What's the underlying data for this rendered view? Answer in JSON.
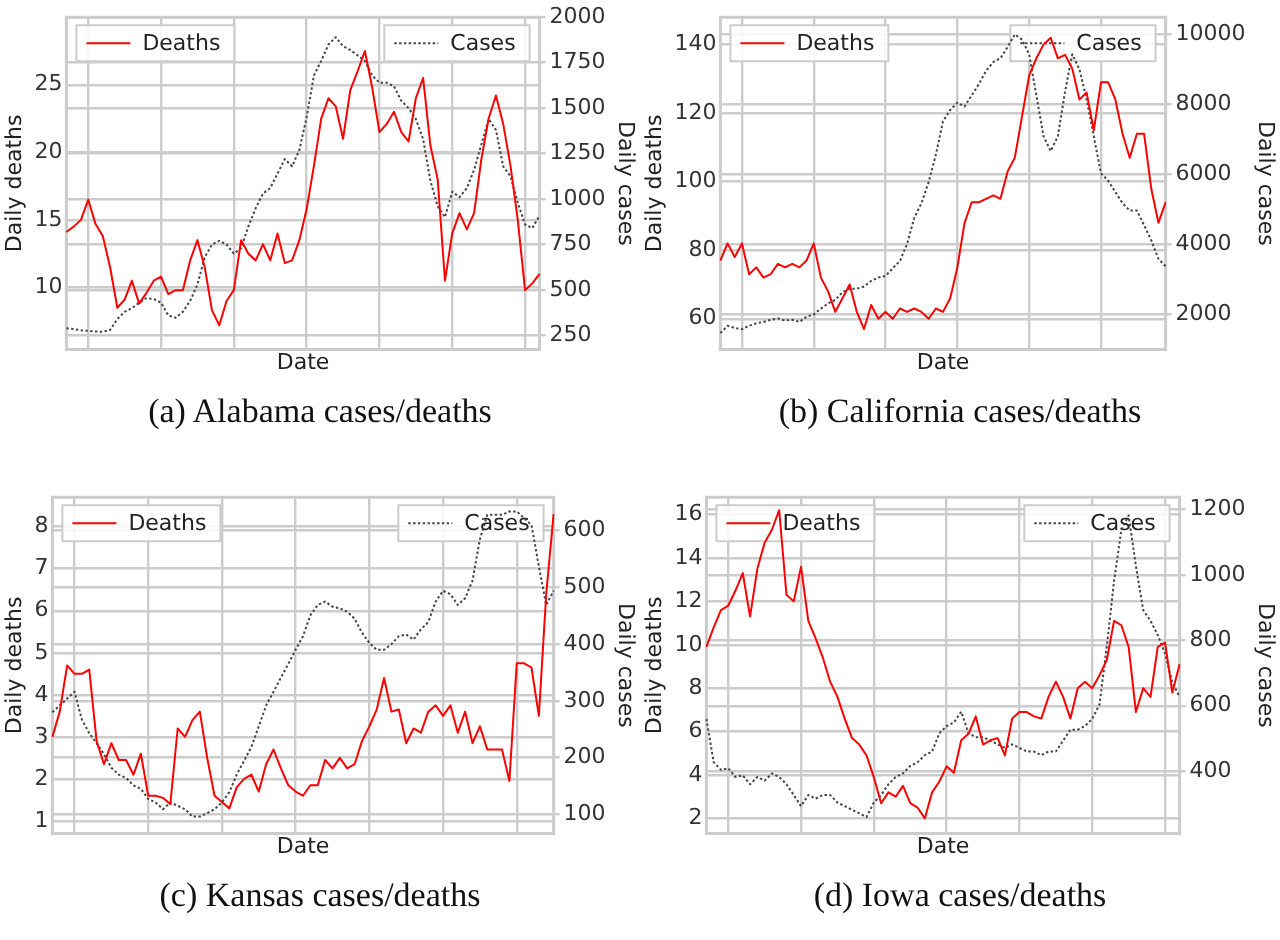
{
  "chart_data": [
    {
      "type": "line",
      "title": "(a)  Alabama cases/deaths",
      "xlabel": "Date",
      "ylabel": "Daily deaths",
      "y2label": "Daily cases",
      "grid": true,
      "legend": "top",
      "categories": [
        null,
        null,
        null,
        null,
        null,
        null,
        null,
        null,
        null,
        null,
        null,
        null,
        null,
        null,
        null,
        null,
        null,
        null,
        null,
        null,
        null,
        null,
        null,
        null,
        null,
        null,
        null,
        null,
        null,
        null,
        null,
        null,
        null,
        null,
        null,
        null,
        null,
        null,
        null,
        null,
        null,
        null,
        null,
        null,
        null,
        null,
        null,
        null,
        null,
        null,
        null,
        null,
        null,
        null,
        null,
        null,
        null,
        null,
        null,
        null,
        null,
        null,
        null,
        null,
        null,
        null
      ],
      "ylim": [
        5.4,
        30
      ],
      "yticks": [
        10,
        15,
        20,
        25
      ],
      "y2lim": [
        172,
        2000
      ],
      "y2ticks": [
        250,
        500,
        750,
        1000,
        1250,
        1500,
        1750,
        2000
      ],
      "series": [
        {
          "name": "Deaths",
          "color": "#ff0000",
          "line_style": "solid",
          "values": [
            14.1,
            14.5,
            15.0,
            16.5,
            14.7,
            13.8,
            11.5,
            8.5,
            9.1,
            10.5,
            8.8,
            9.6,
            10.5,
            10.8,
            9.5,
            9.8,
            9.8,
            12.0,
            13.5,
            11.5,
            8.3,
            7.2,
            9.0,
            9.8,
            13.5,
            12.5,
            12.0,
            13.2,
            12.0,
            14.0,
            11.8,
            12.0,
            13.5,
            15.8,
            19.0,
            22.5,
            24.0,
            23.4,
            21.0,
            24.6,
            26.0,
            27.5,
            24.8,
            21.5,
            22.1,
            23.0,
            21.5,
            20.8,
            24.0,
            25.5,
            20.5,
            18.0,
            10.5,
            14.0,
            15.5,
            14.3,
            15.5,
            19.5,
            22.5,
            24.2,
            22.1,
            19.0,
            15.0,
            9.8,
            10.3,
            11.0
          ]
        },
        {
          "name": "Cases",
          "color": "#444444",
          "line_style": "dotted",
          "axis": "y2",
          "values": [
            289,
            285,
            278,
            275,
            272,
            270,
            280,
            340,
            380,
            400,
            430,
            455,
            450,
            430,
            360,
            347,
            380,
            440,
            530,
            680,
            750,
            770,
            750,
            700,
            730,
            850,
            950,
            1030,
            1060,
            1140,
            1220,
            1180,
            1270,
            1450,
            1680,
            1760,
            1850,
            1890,
            1840,
            1820,
            1790,
            1760,
            1680,
            1640,
            1640,
            1620,
            1540,
            1500,
            1440,
            1330,
            1100,
            960,
            900,
            1040,
            1010,
            1060,
            1160,
            1300,
            1440,
            1380,
            1180,
            1125,
            980,
            860,
            840,
            910
          ]
        }
      ]
    },
    {
      "type": "line",
      "title": "(b)  California cases/deaths",
      "xlabel": "Date",
      "ylabel": "Daily deaths",
      "y2label": "Daily cases",
      "grid": true,
      "legend": "top",
      "categories": [
        null,
        null,
        null,
        null,
        null,
        null,
        null,
        null,
        null,
        null,
        null,
        null,
        null,
        null,
        null,
        null,
        null,
        null,
        null,
        null,
        null,
        null,
        null,
        null,
        null,
        null,
        null,
        null,
        null,
        null,
        null,
        null,
        null,
        null,
        null,
        null,
        null,
        null,
        null,
        null,
        null,
        null,
        null,
        null,
        null,
        null,
        null,
        null,
        null,
        null,
        null,
        null,
        null,
        null,
        null,
        null,
        null,
        null,
        null,
        null,
        null,
        null,
        null
      ],
      "ylim": [
        51,
        148
      ],
      "yticks": [
        60,
        80,
        100,
        120,
        140
      ],
      "y2lim": [
        1000,
        10490
      ],
      "y2ticks": [
        2000,
        4000,
        6000,
        8000,
        10000
      ],
      "series": [
        {
          "name": "Deaths",
          "color": "#ff0000",
          "line_style": "solid",
          "values": [
            77,
            82,
            78,
            82,
            73,
            75,
            72,
            73,
            76,
            75,
            76,
            75,
            77,
            82,
            72,
            68,
            62,
            66,
            70,
            62,
            57,
            64,
            60,
            62,
            60,
            63,
            62,
            63,
            62,
            60,
            63,
            62,
            66,
            75,
            88,
            94,
            94,
            95,
            96,
            95,
            103,
            107,
            119,
            131,
            136,
            140,
            142,
            136,
            137,
            133,
            124,
            126,
            115,
            129,
            129,
            124,
            114,
            107,
            114,
            114,
            98,
            88,
            94
          ]
        },
        {
          "name": "Cases",
          "color": "#444444",
          "line_style": "dotted",
          "axis": "y2",
          "values": [
            1470,
            1680,
            1620,
            1580,
            1680,
            1750,
            1790,
            1850,
            1890,
            1830,
            1850,
            1790,
            1940,
            2000,
            2170,
            2320,
            2420,
            2640,
            2740,
            2740,
            2800,
            2960,
            3060,
            3100,
            3320,
            3530,
            4020,
            4760,
            5180,
            5780,
            6560,
            7520,
            7840,
            8050,
            7940,
            8260,
            8580,
            8960,
            9210,
            9320,
            9640,
            10000,
            9850,
            9430,
            8260,
            7090,
            6670,
            7090,
            8370,
            9430,
            9000,
            8150,
            7090,
            6030,
            5820,
            5500,
            5180,
            4970,
            4970,
            4550,
            4120,
            3590,
            3380
          ]
        }
      ]
    },
    {
      "type": "line",
      "title": "(c)  Kansas cases/deaths",
      "xlabel": "Date",
      "ylabel": "Daily deaths",
      "y2label": "Daily cases",
      "grid": true,
      "legend": "top",
      "categories": [
        null,
        null,
        null,
        null,
        null,
        null,
        null,
        null,
        null,
        null,
        null,
        null,
        null,
        null,
        null,
        null,
        null,
        null,
        null,
        null,
        null,
        null,
        null,
        null,
        null,
        null,
        null,
        null,
        null,
        null,
        null,
        null,
        null,
        null,
        null,
        null,
        null,
        null,
        null,
        null,
        null,
        null,
        null,
        null,
        null,
        null,
        null,
        null,
        null,
        null,
        null,
        null,
        null,
        null,
        null,
        null,
        null,
        null,
        null,
        null,
        null,
        null,
        null,
        null,
        null,
        null,
        null,
        null,
        null
      ],
      "ylim": [
        0.7,
        8.7
      ],
      "yticks": [
        1,
        2,
        3,
        4,
        5,
        6,
        7,
        8
      ],
      "y2lim": [
        66,
        659
      ],
      "y2ticks": [
        100,
        200,
        300,
        400,
        500,
        600
      ],
      "series": [
        {
          "name": "Deaths",
          "color": "#ff0000",
          "line_style": "solid",
          "values": [
            3.0,
            3.6,
            4.7,
            4.5,
            4.5,
            4.6,
            2.9,
            2.35,
            2.85,
            2.45,
            2.45,
            2.1,
            2.6,
            1.6,
            1.6,
            1.55,
            1.4,
            3.2,
            3.0,
            3.4,
            3.6,
            2.5,
            1.6,
            1.45,
            1.3,
            1.8,
            2.0,
            2.1,
            1.7,
            2.35,
            2.7,
            2.25,
            1.85,
            1.7,
            1.6,
            1.85,
            1.85,
            2.45,
            2.25,
            2.5,
            2.25,
            2.35,
            2.9,
            3.25,
            3.65,
            4.4,
            3.6,
            3.65,
            2.85,
            3.2,
            3.1,
            3.6,
            3.75,
            3.5,
            3.75,
            3.1,
            3.6,
            2.85,
            3.25,
            2.7,
            2.7,
            2.7,
            1.95,
            4.75,
            4.75,
            4.65,
            3.5,
            6.4,
            8.3
          ]
        },
        {
          "name": "Cases",
          "color": "#444444",
          "line_style": "dotted",
          "axis": "y2",
          "values": [
            280,
            292,
            304,
            316,
            267,
            243,
            225,
            206,
            182,
            170,
            164,
            151,
            145,
            127,
            121,
            109,
            121,
            115,
            109,
            96,
            96,
            102,
            109,
            121,
            139,
            170,
            194,
            219,
            255,
            292,
            316,
            341,
            365,
            390,
            414,
            451,
            469,
            475,
            466,
            463,
            457,
            445,
            420,
            402,
            390,
            390,
            400,
            414,
            417,
            408,
            426,
            439,
            475,
            494,
            488,
            469,
            481,
            512,
            585,
            628,
            628,
            628,
            634,
            634,
            622,
            610,
            537,
            469,
            494
          ]
        }
      ]
    },
    {
      "type": "line",
      "title": "(d)  Iowa cases/deaths",
      "xlabel": "Date",
      "ylabel": "Daily deaths",
      "y2label": "Daily cases",
      "grid": true,
      "legend": "top",
      "categories": [
        null,
        null,
        null,
        null,
        null,
        null,
        null,
        null,
        null,
        null,
        null,
        null,
        null,
        null,
        null,
        null,
        null,
        null,
        null,
        null,
        null,
        null,
        null,
        null,
        null,
        null,
        null,
        null,
        null,
        null,
        null,
        null,
        null,
        null,
        null,
        null,
        null,
        null,
        null,
        null,
        null,
        null,
        null,
        null,
        null,
        null,
        null,
        null,
        null,
        null,
        null,
        null,
        null,
        null,
        null,
        null,
        null,
        null,
        null,
        null,
        null,
        null,
        null,
        null,
        null,
        null
      ],
      "ylim": [
        1.3,
        16.8
      ],
      "yticks": [
        2,
        4,
        6,
        8,
        10,
        12,
        14,
        16
      ],
      "y2lim": [
        209,
        1238
      ],
      "y2ticks": [
        400,
        600,
        800,
        1000,
        1200
      ],
      "series": [
        {
          "name": "Deaths",
          "color": "#ff0000",
          "line_style": "solid",
          "values": [
            9.9,
            10.8,
            11.6,
            11.8,
            12.5,
            13.3,
            11.3,
            13.5,
            14.7,
            15.3,
            16.2,
            12.3,
            12.0,
            13.6,
            11.1,
            10.3,
            9.4,
            8.3,
            7.6,
            6.6,
            5.7,
            5.4,
            4.9,
            3.9,
            2.7,
            3.2,
            3.0,
            3.5,
            2.7,
            2.5,
            2.0,
            3.2,
            3.7,
            4.4,
            4.1,
            5.6,
            5.9,
            6.7,
            5.4,
            5.6,
            5.7,
            4.9,
            6.6,
            6.9,
            6.9,
            6.7,
            6.6,
            7.6,
            8.3,
            7.6,
            6.6,
            8.0,
            8.3,
            8.0,
            8.6,
            9.3,
            11.1,
            10.9,
            9.9,
            6.9,
            8.0,
            7.6,
            9.9,
            10.1,
            7.8,
            9.1
          ]
        },
        {
          "name": "Cases",
          "color": "#444444",
          "line_style": "dotted",
          "axis": "y2",
          "values": [
            560,
            427,
            404,
            409,
            382,
            387,
            360,
            382,
            371,
            393,
            382,
            360,
            327,
            293,
            327,
            316,
            327,
            327,
            304,
            293,
            282,
            271,
            260,
            304,
            327,
            360,
            382,
            393,
            416,
            427,
            449,
            460,
            516,
            538,
            549,
            582,
            516,
            504,
            504,
            493,
            482,
            471,
            482,
            471,
            460,
            460,
            449,
            460,
            460,
            493,
            527,
            527,
            538,
            560,
            604,
            782,
            982,
            1138,
            1182,
            1027,
            893,
            860,
            816,
            760,
            671,
            627
          ]
        }
      ]
    }
  ]
}
